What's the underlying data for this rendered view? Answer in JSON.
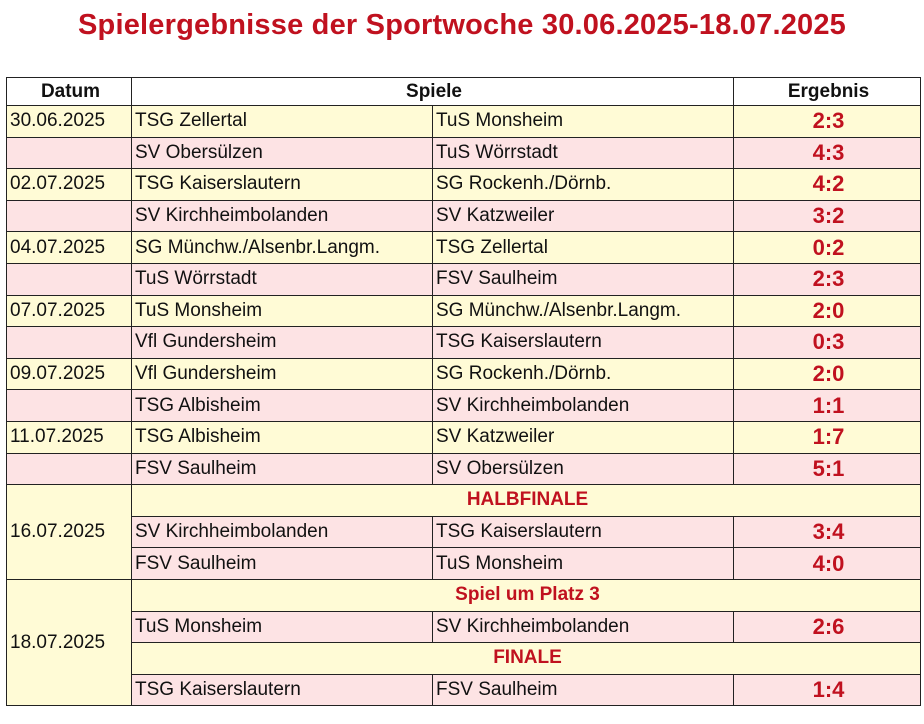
{
  "title": "Spielergebnisse der Sportwoche 30.06.2025-18.07.2025",
  "headers": {
    "date": "Datum",
    "games": "Spiele",
    "result": "Ergebnis"
  },
  "rows": [
    {
      "date": "30.06.2025",
      "home": "TSG Zellertal",
      "away": "TuS Monsheim",
      "score": "2:3"
    },
    {
      "date": "",
      "home": "SV Obersülzen",
      "away": "TuS Wörrstadt",
      "score": "4:3"
    },
    {
      "date": "02.07.2025",
      "home": "TSG Kaiserslautern",
      "away": "SG Rockenh./Dörnb.",
      "score": "4:2"
    },
    {
      "date": "",
      "home": "SV Kirchheimbolanden",
      "away": "SV Katzweiler",
      "score": "3:2"
    },
    {
      "date": "04.07.2025",
      "home": "SG Münchw./Alsenbr.Langm.",
      "away": "TSG Zellertal",
      "score": "0:2"
    },
    {
      "date": "",
      "home": "TuS Wörrstadt",
      "away": "FSV Saulheim",
      "score": "2:3"
    },
    {
      "date": "07.07.2025",
      "home": "TuS Monsheim",
      "away": "SG Münchw./Alsenbr.Langm.",
      "score": "2:0"
    },
    {
      "date": "",
      "home": "Vfl Gundersheim",
      "away": "TSG Kaiserslautern",
      "score": "0:3"
    },
    {
      "date": "09.07.2025",
      "home": "Vfl Gundersheim",
      "away": "SG Rockenh./Dörnb.",
      "score": "2:0"
    },
    {
      "date": "",
      "home": "TSG Albisheim",
      "away": "SV Kirchheimbolanden",
      "score": "1:1"
    },
    {
      "date": "11.07.2025",
      "home": "TSG Albisheim",
      "away": "SV Katzweiler",
      "score": "1:7"
    },
    {
      "date": "",
      "home": "FSV Saulheim",
      "away": "SV Obersülzen",
      "score": "5:1"
    }
  ],
  "semifinal": {
    "date": "16.07.2025",
    "label": "HALBFINALE",
    "games": [
      {
        "home": "SV Kirchheimbolanden",
        "away": "TSG Kaiserslautern",
        "score": "3:4"
      },
      {
        "home": "FSV Saulheim",
        "away": "TuS Monsheim",
        "score": "4:0"
      }
    ]
  },
  "final_day": {
    "date": "18.07.2025",
    "third_place_label": "Spiel um Platz 3",
    "third_place": {
      "home": "TuS Monsheim",
      "away": "SV Kirchheimbolanden",
      "score": "2:6"
    },
    "final_label": "FINALE",
    "final": {
      "home": "TSG Kaiserslautern",
      "away": "FSV Saulheim",
      "score": "1:4"
    }
  }
}
